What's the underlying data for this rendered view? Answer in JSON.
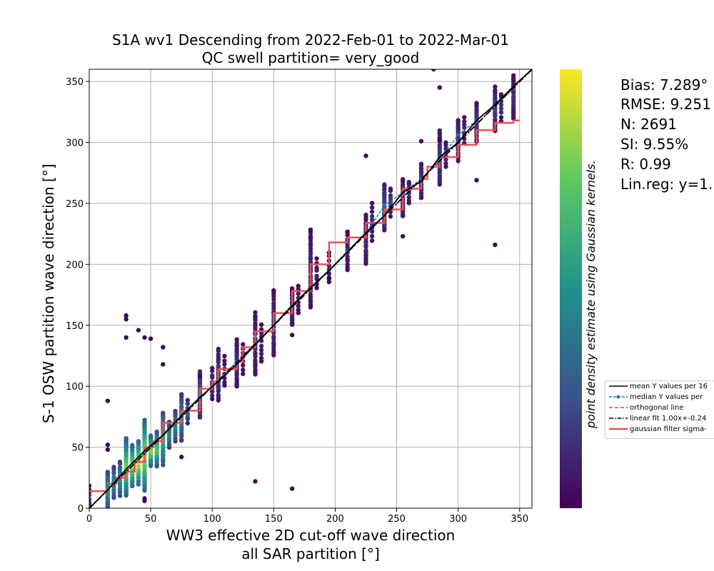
{
  "chart_data": {
    "type": "scatter",
    "title_line1": "S1A wv1 Descending from 2022-Feb-01 to 2022-Mar-01",
    "title_line2": "QC swell partition= very_good",
    "xlabel_line1": "WW3 effective 2D cut-off wave direction",
    "xlabel_line2": "all SAR partition [°]",
    "ylabel": "S-1 OSW partition wave direction [°]",
    "xlim": [
      0,
      360
    ],
    "ylim": [
      0,
      360
    ],
    "x_ticks": [
      0,
      50,
      100,
      150,
      200,
      250,
      300,
      350
    ],
    "y_ticks": [
      0,
      50,
      100,
      150,
      200,
      250,
      300,
      350
    ],
    "grid": true,
    "colorbar_label": "point density estimate using Gaussian kernels.",
    "colormap": [
      "#440154",
      "#3b528b",
      "#21918c",
      "#5ec962",
      "#fde725"
    ],
    "stats": {
      "bias": "Bias: 7.289°",
      "rmse": "RMSE: 9.251",
      "n": "N: 2691",
      "si": "SI: 9.55%",
      "r": "R: 0.99",
      "linreg": "Lin.reg: y=1."
    },
    "legend": [
      {
        "label": "mean Y values per 16",
        "color": "#000000",
        "style": "solid"
      },
      {
        "label": "median Y values per",
        "color": "#1f77b4",
        "style": "dashed-marker"
      },
      {
        "label": "orthogonal line",
        "color": "#e020e0",
        "style": "dashed"
      },
      {
        "label": "linear fit 1.00x+-0.24",
        "color": "#000000",
        "style": "dashdot"
      },
      {
        "label": "gaussian filter sigma-",
        "color": "#f05050",
        "style": "thick"
      }
    ],
    "scatter_columns": [
      {
        "x": 0,
        "ymin": 0,
        "ymax": 18,
        "n": 8,
        "d": 0.2
      },
      {
        "x": 15,
        "ymin": 0,
        "ymax": 30,
        "n": 30,
        "d": 0.55
      },
      {
        "x": 20,
        "ymin": 8,
        "ymax": 34,
        "n": 14,
        "d": 0.5
      },
      {
        "x": 25,
        "ymin": 10,
        "ymax": 38,
        "n": 14,
        "d": 0.55
      },
      {
        "x": 30,
        "ymin": 10,
        "ymax": 58,
        "n": 40,
        "d": 0.8
      },
      {
        "x": 35,
        "ymin": 18,
        "ymax": 52,
        "n": 24,
        "d": 0.85
      },
      {
        "x": 40,
        "ymin": 20,
        "ymax": 55,
        "n": 24,
        "d": 0.95
      },
      {
        "x": 45,
        "ymin": 15,
        "ymax": 72,
        "n": 40,
        "d": 0.9
      },
      {
        "x": 50,
        "ymin": 35,
        "ymax": 60,
        "n": 20,
        "d": 0.85
      },
      {
        "x": 55,
        "ymin": 35,
        "ymax": 62,
        "n": 20,
        "d": 0.75
      },
      {
        "x": 60,
        "ymin": 36,
        "ymax": 78,
        "n": 30,
        "d": 0.65
      },
      {
        "x": 65,
        "ymin": 50,
        "ymax": 70,
        "n": 12,
        "d": 0.5
      },
      {
        "x": 70,
        "ymin": 55,
        "ymax": 80,
        "n": 14,
        "d": 0.5
      },
      {
        "x": 75,
        "ymin": 55,
        "ymax": 94,
        "n": 24,
        "d": 0.45
      },
      {
        "x": 80,
        "ymin": 70,
        "ymax": 88,
        "n": 8,
        "d": 0.3
      },
      {
        "x": 90,
        "ymin": 75,
        "ymax": 112,
        "n": 26,
        "d": 0.3
      },
      {
        "x": 100,
        "ymin": 90,
        "ymax": 115,
        "n": 10,
        "d": 0.15
      },
      {
        "x": 105,
        "ymin": 88,
        "ymax": 130,
        "n": 24,
        "d": 0.2
      },
      {
        "x": 110,
        "ymin": 100,
        "ymax": 125,
        "n": 8,
        "d": 0.1
      },
      {
        "x": 120,
        "ymin": 100,
        "ymax": 138,
        "n": 22,
        "d": 0.15
      },
      {
        "x": 125,
        "ymin": 110,
        "ymax": 135,
        "n": 8,
        "d": 0.1
      },
      {
        "x": 135,
        "ymin": 110,
        "ymax": 160,
        "n": 26,
        "d": 0.15
      },
      {
        "x": 140,
        "ymin": 120,
        "ymax": 150,
        "n": 10,
        "d": 0.1
      },
      {
        "x": 150,
        "ymin": 125,
        "ymax": 178,
        "n": 24,
        "d": 0.15
      },
      {
        "x": 165,
        "ymin": 150,
        "ymax": 180,
        "n": 24,
        "d": 0.15
      },
      {
        "x": 170,
        "ymin": 160,
        "ymax": 182,
        "n": 8,
        "d": 0.1
      },
      {
        "x": 180,
        "ymin": 165,
        "ymax": 228,
        "n": 30,
        "d": 0.15
      },
      {
        "x": 185,
        "ymin": 180,
        "ymax": 205,
        "n": 8,
        "d": 0.1
      },
      {
        "x": 195,
        "ymin": 185,
        "ymax": 210,
        "n": 8,
        "d": 0.1
      },
      {
        "x": 210,
        "ymin": 195,
        "ymax": 226,
        "n": 14,
        "d": 0.1
      },
      {
        "x": 225,
        "ymin": 200,
        "ymax": 240,
        "n": 24,
        "d": 0.15
      },
      {
        "x": 230,
        "ymin": 220,
        "ymax": 250,
        "n": 10,
        "d": 0.15
      },
      {
        "x": 240,
        "ymin": 228,
        "ymax": 265,
        "n": 26,
        "d": 0.25
      },
      {
        "x": 245,
        "ymin": 240,
        "ymax": 262,
        "n": 10,
        "d": 0.2
      },
      {
        "x": 255,
        "ymin": 240,
        "ymax": 270,
        "n": 24,
        "d": 0.2
      },
      {
        "x": 260,
        "ymin": 250,
        "ymax": 268,
        "n": 8,
        "d": 0.15
      },
      {
        "x": 270,
        "ymin": 255,
        "ymax": 282,
        "n": 22,
        "d": 0.2
      },
      {
        "x": 285,
        "ymin": 265,
        "ymax": 310,
        "n": 24,
        "d": 0.2
      },
      {
        "x": 290,
        "ymin": 280,
        "ymax": 300,
        "n": 8,
        "d": 0.15
      },
      {
        "x": 300,
        "ymin": 285,
        "ymax": 318,
        "n": 22,
        "d": 0.2
      },
      {
        "x": 305,
        "ymin": 300,
        "ymax": 320,
        "n": 8,
        "d": 0.15
      },
      {
        "x": 315,
        "ymin": 300,
        "ymax": 332,
        "n": 22,
        "d": 0.2
      },
      {
        "x": 330,
        "ymin": 310,
        "ymax": 345,
        "n": 24,
        "d": 0.2
      },
      {
        "x": 335,
        "ymin": 318,
        "ymax": 340,
        "n": 8,
        "d": 0.15
      },
      {
        "x": 345,
        "ymin": 320,
        "ymax": 355,
        "n": 24,
        "d": 0.15
      }
    ],
    "outliers": [
      [
        30,
        158
      ],
      [
        30,
        155
      ],
      [
        30,
        140
      ],
      [
        40,
        146
      ],
      [
        45,
        140
      ],
      [
        50,
        139
      ],
      [
        60,
        132
      ],
      [
        60,
        118
      ],
      [
        15,
        88
      ],
      [
        15,
        52
      ],
      [
        15,
        48
      ],
      [
        45,
        8
      ],
      [
        45,
        6
      ],
      [
        135,
        22
      ],
      [
        165,
        16
      ],
      [
        180,
        228
      ],
      [
        225,
        289
      ],
      [
        255,
        223
      ],
      [
        270,
        301
      ],
      [
        285,
        345
      ],
      [
        285,
        302
      ],
      [
        315,
        269
      ],
      [
        330,
        216
      ],
      [
        280,
        360
      ],
      [
        150,
        178
      ],
      [
        165,
        142
      ],
      [
        195,
        188
      ],
      [
        210,
        226
      ],
      [
        90,
        108
      ],
      [
        75,
        42
      ]
    ],
    "mean_line": [
      [
        0,
        0
      ],
      [
        15,
        15
      ],
      [
        30,
        32
      ],
      [
        45,
        47
      ],
      [
        60,
        60
      ],
      [
        75,
        76
      ],
      [
        90,
        91
      ],
      [
        105,
        104
      ],
      [
        120,
        118
      ],
      [
        135,
        134
      ],
      [
        150,
        150
      ],
      [
        165,
        166
      ],
      [
        180,
        181
      ],
      [
        195,
        195
      ],
      [
        210,
        210
      ],
      [
        225,
        226
      ],
      [
        240,
        240
      ],
      [
        255,
        259
      ],
      [
        270,
        268
      ],
      [
        285,
        288
      ],
      [
        300,
        300
      ],
      [
        315,
        318
      ],
      [
        330,
        331
      ],
      [
        345,
        346
      ],
      [
        360,
        360
      ]
    ],
    "median_line": [
      [
        15,
        18
      ],
      [
        30,
        30
      ],
      [
        45,
        45
      ],
      [
        60,
        60
      ],
      [
        75,
        75
      ],
      [
        90,
        90
      ],
      [
        105,
        105
      ],
      [
        120,
        120
      ],
      [
        135,
        135
      ],
      [
        150,
        150
      ],
      [
        165,
        167
      ],
      [
        180,
        181
      ],
      [
        195,
        195
      ],
      [
        210,
        211
      ],
      [
        225,
        226
      ],
      [
        240,
        248
      ],
      [
        255,
        259
      ],
      [
        270,
        270
      ],
      [
        285,
        286
      ],
      [
        300,
        306
      ],
      [
        315,
        318
      ],
      [
        330,
        330
      ],
      [
        345,
        344
      ]
    ],
    "gaussian_steps": [
      [
        0,
        14
      ],
      [
        15,
        14
      ],
      [
        15,
        20
      ],
      [
        22,
        20
      ],
      [
        22,
        25
      ],
      [
        30,
        25
      ],
      [
        30,
        30
      ],
      [
        37,
        30
      ],
      [
        37,
        38
      ],
      [
        45,
        38
      ],
      [
        45,
        50
      ],
      [
        52,
        50
      ],
      [
        52,
        55
      ],
      [
        60,
        55
      ],
      [
        60,
        70
      ],
      [
        75,
        70
      ],
      [
        75,
        80
      ],
      [
        90,
        80
      ],
      [
        90,
        98
      ],
      [
        100,
        98
      ],
      [
        100,
        104
      ],
      [
        105,
        104
      ],
      [
        105,
        114
      ],
      [
        120,
        114
      ],
      [
        120,
        120
      ],
      [
        125,
        120
      ],
      [
        125,
        132
      ],
      [
        135,
        132
      ],
      [
        135,
        145
      ],
      [
        150,
        145
      ],
      [
        150,
        160
      ],
      [
        165,
        160
      ],
      [
        165,
        178
      ],
      [
        180,
        178
      ],
      [
        180,
        200
      ],
      [
        195,
        200
      ],
      [
        195,
        218
      ],
      [
        210,
        218
      ],
      [
        210,
        222
      ],
      [
        225,
        222
      ],
      [
        225,
        234
      ],
      [
        240,
        234
      ],
      [
        240,
        245
      ],
      [
        255,
        245
      ],
      [
        255,
        262
      ],
      [
        270,
        262
      ],
      [
        270,
        270
      ],
      [
        275,
        270
      ],
      [
        275,
        280
      ],
      [
        285,
        280
      ],
      [
        285,
        288
      ],
      [
        300,
        288
      ],
      [
        300,
        298
      ],
      [
        315,
        298
      ],
      [
        315,
        310
      ],
      [
        330,
        310
      ],
      [
        330,
        316
      ],
      [
        345,
        316
      ],
      [
        345,
        318
      ],
      [
        350,
        318
      ]
    ]
  }
}
